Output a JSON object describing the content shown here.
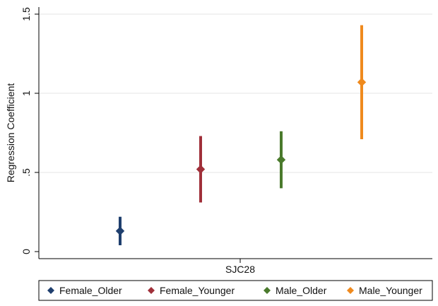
{
  "chart_data": {
    "type": "scatter",
    "subtype": "coefficient-plot-with-confidence-intervals",
    "title": "",
    "xlabel": "SJC28",
    "ylabel": "Regression Coefficient",
    "ylim": [
      0,
      1.5
    ],
    "yticks": [
      {
        "value": 0,
        "label": "0"
      },
      {
        "value": 0.5,
        "label": ".5"
      },
      {
        "value": 1,
        "label": "1"
      },
      {
        "value": 1.5,
        "label": "1.5"
      }
    ],
    "grid": "horizontal",
    "legend_position": "bottom",
    "series": [
      {
        "name": "Female_Older",
        "color": "#1f3f6e",
        "estimate": 0.13,
        "ci_low": 0.04,
        "ci_high": 0.22
      },
      {
        "name": "Female_Younger",
        "color": "#a0303a",
        "estimate": 0.52,
        "ci_low": 0.31,
        "ci_high": 0.73
      },
      {
        "name": "Male_Older",
        "color": "#4a7a2c",
        "estimate": 0.58,
        "ci_low": 0.4,
        "ci_high": 0.76
      },
      {
        "name": "Male_Younger",
        "color": "#ef8a1e",
        "estimate": 1.07,
        "ci_low": 0.71,
        "ci_high": 1.43
      }
    ]
  }
}
